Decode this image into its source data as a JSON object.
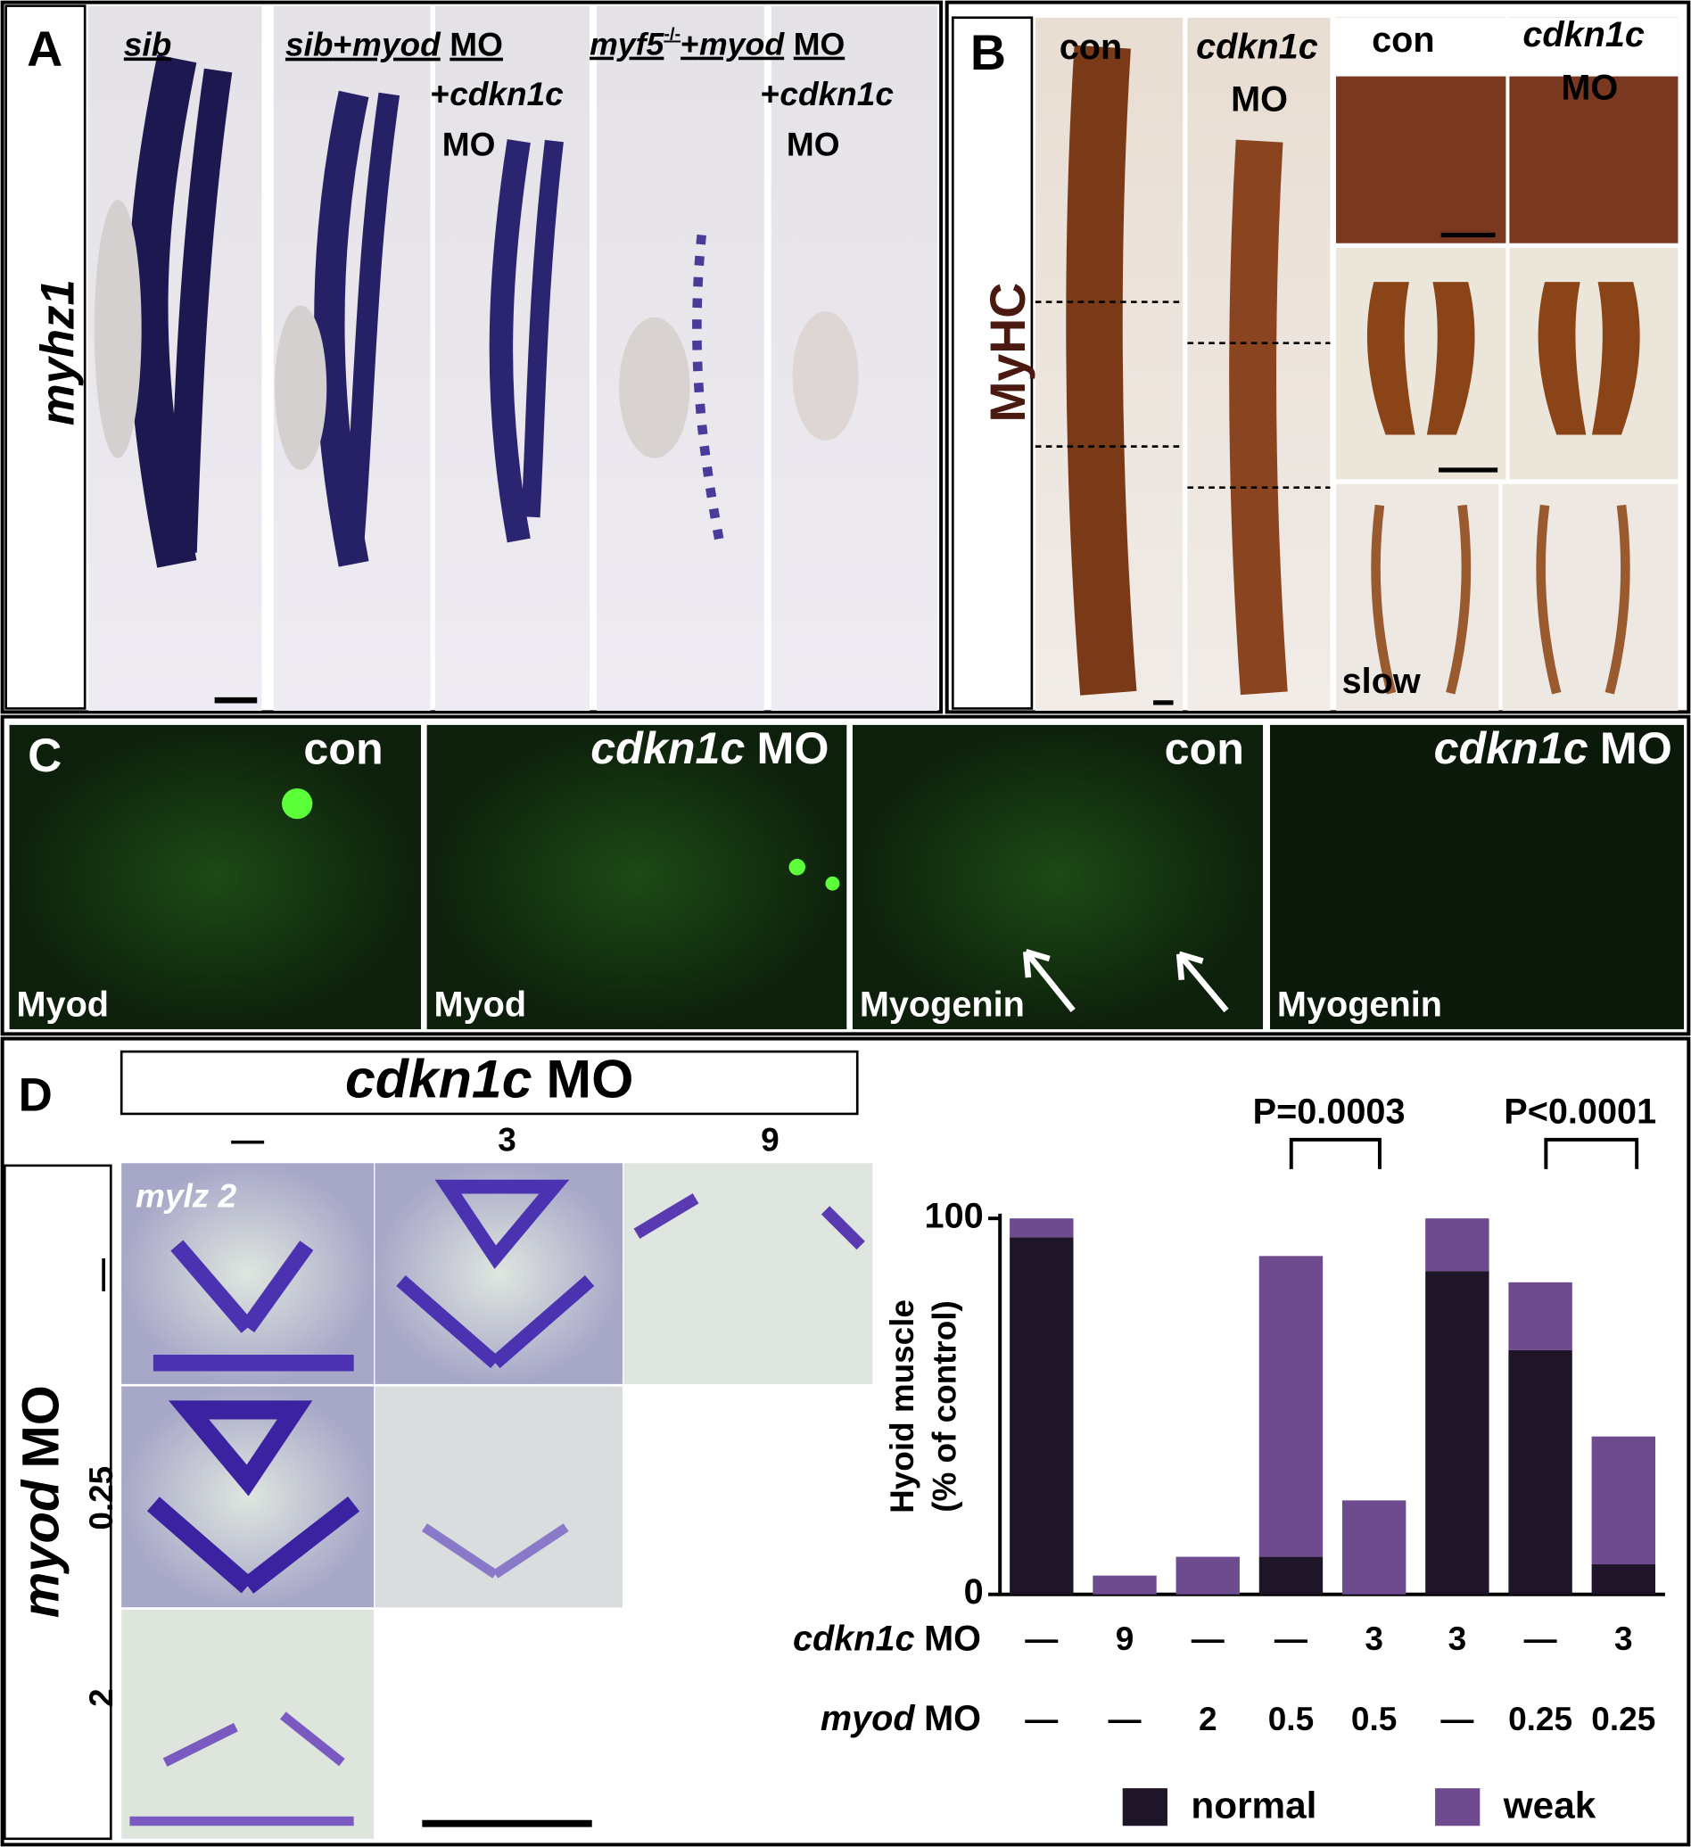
{
  "panel_a": {
    "letter": "A",
    "side_label": "myhz1",
    "headers": [
      [
        "sib"
      ],
      [
        "sib",
        "+",
        "myod",
        "MO"
      ],
      [
        "+",
        "cdkn1c",
        "MO"
      ],
      [
        "myf5",
        "-/-",
        "+",
        "myod",
        "MO"
      ],
      [
        "+",
        "cdkn1c",
        "MO"
      ]
    ]
  },
  "panel_b": {
    "letter": "B",
    "side_label": "MyHC",
    "labels": [
      [
        "con"
      ],
      [
        "cdkn1c",
        "MO"
      ],
      [
        "con"
      ],
      [
        "cdkn1c",
        "MO"
      ],
      [
        "slow"
      ]
    ]
  },
  "panel_c": {
    "letter": "C",
    "images": [
      {
        "top": [
          "con"
        ],
        "bottom": "Myod"
      },
      {
        "top": [
          "cdkn1c",
          "MO"
        ],
        "bottom": "Myod"
      },
      {
        "top": [
          "con"
        ],
        "bottom": "Myogenin"
      },
      {
        "top": [
          "cdkn1c",
          "MO"
        ],
        "bottom": "Myogenin"
      }
    ]
  },
  "panel_d": {
    "letter": "D",
    "column_header": [
      "cdkn1c",
      "MO"
    ],
    "columns": [
      "—",
      "3",
      "9"
    ],
    "row_header": [
      "myod",
      "MO"
    ],
    "rows": [
      "—",
      "0.25",
      "2"
    ],
    "image_label": "mylz 2"
  },
  "chart_data": {
    "type": "bar",
    "stacked": true,
    "y_label": [
      "Hyoid muscle",
      "(% of control)"
    ],
    "ylim": [
      0,
      100
    ],
    "yticks": [
      0,
      100
    ],
    "category_rows": [
      {
        "label": [
          "cdkn1c",
          "MO"
        ],
        "values": [
          "—",
          "9",
          "—",
          "—",
          "3",
          "3",
          "—",
          "3"
        ]
      },
      {
        "label": [
          "myod",
          "MO"
        ],
        "values": [
          "—",
          "—",
          "2",
          "0.5",
          "0.5",
          "—",
          "0.25",
          "0.25"
        ]
      }
    ],
    "series": [
      {
        "name": "normal",
        "color": "#1e1528",
        "values": [
          95,
          0,
          0,
          10,
          0,
          86,
          65,
          8
        ]
      },
      {
        "name": "weak",
        "color": "#6e4a8e",
        "values": [
          5,
          5,
          10,
          80,
          25,
          14,
          18,
          34
        ]
      }
    ],
    "annotations": [
      "P=0.0003",
      "P<0.0001"
    ]
  }
}
